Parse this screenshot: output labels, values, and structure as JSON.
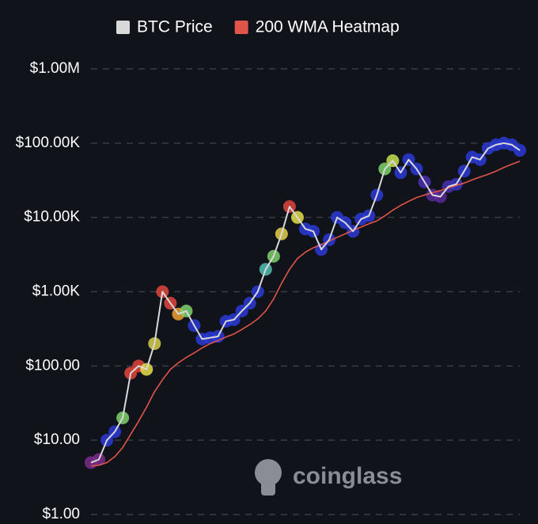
{
  "chart_data": {
    "type": "line",
    "log_scale": true,
    "grid": true,
    "legend": "top",
    "watermark": "coinglass",
    "ylim": [
      1,
      1000000
    ],
    "yticks": [
      {
        "value": 1,
        "label": "$1.00"
      },
      {
        "value": 10,
        "label": "$10.00"
      },
      {
        "value": 100,
        "label": "$100.00"
      },
      {
        "value": 1000,
        "label": "$1.00K"
      },
      {
        "value": 10000,
        "label": "$10.00K"
      },
      {
        "value": 100000,
        "label": "$100.00K"
      },
      {
        "value": 1000000,
        "label": "$1.00M"
      }
    ],
    "series": [
      {
        "name": "BTC Price",
        "color": "#d9d9d9",
        "values": [
          5,
          5.5,
          10,
          13,
          20,
          80,
          100,
          90,
          200,
          1000,
          700,
          500,
          550,
          350,
          230,
          240,
          250,
          400,
          420,
          550,
          700,
          1000,
          2000,
          3000,
          6000,
          14000,
          10000,
          7000,
          6500,
          3700,
          5000,
          10000,
          8500,
          6500,
          9500,
          10500,
          20000,
          45000,
          58000,
          40000,
          60000,
          45000,
          30000,
          20000,
          19000,
          26000,
          28000,
          42000,
          65000,
          60000,
          85000,
          95000,
          100000,
          95000,
          80000
        ],
        "point_colors": [
          "#7a2f8a",
          "#7a2f8a",
          "#2b3bd6",
          "#2b3bd6",
          "#7ed36b",
          "#e0463c",
          "#e0463c",
          "#e6e04a",
          "#d8d04a",
          "#e0463c",
          "#e0463c",
          "#f0a030",
          "#7ed36b",
          "#2b3bd6",
          "#2b3bd6",
          "#2b3bd6",
          "#2b3bd6",
          "#2b3bd6",
          "#2b3bd6",
          "#2b3bd6",
          "#2b3bd6",
          "#2b3bd6",
          "#50c0b0",
          "#7ed36b",
          "#e6d04a",
          "#e0463c",
          "#e6e04a",
          "#2b3bd6",
          "#2b3bd6",
          "#2b3bd6",
          "#2b3bd6",
          "#2b3bd6",
          "#2b3bd6",
          "#2b3bd6",
          "#2b3bd6",
          "#2b3bd6",
          "#2b3bd6",
          "#7ed36b",
          "#c8e050",
          "#2b3bd6",
          "#2b3bd6",
          "#2b3bd6",
          "#4a30b0",
          "#5a2a9a",
          "#5a2a9a",
          "#4a30b0",
          "#3a35c0",
          "#2b3bd6",
          "#2b3bd6",
          "#2b3bd6",
          "#2b3bd6",
          "#2b3bd6",
          "#2b3bd6",
          "#2b3bd6",
          "#2b3bd6"
        ]
      },
      {
        "name": "200 WMA Heatmap",
        "color": "#e0544a",
        "values": [
          4.5,
          4.6,
          5,
          6,
          8,
          12,
          18,
          28,
          45,
          65,
          90,
          110,
          130,
          150,
          175,
          200,
          220,
          245,
          270,
          310,
          360,
          430,
          550,
          800,
          1300,
          2000,
          2800,
          3400,
          3900,
          4300,
          4800,
          5400,
          6000,
          6700,
          7400,
          8200,
          9000,
          10500,
          12500,
          14500,
          16500,
          18500,
          20000,
          21500,
          23000,
          25000,
          27000,
          29000,
          32000,
          35000,
          38000,
          42000,
          47000,
          52000,
          57000
        ]
      }
    ]
  }
}
